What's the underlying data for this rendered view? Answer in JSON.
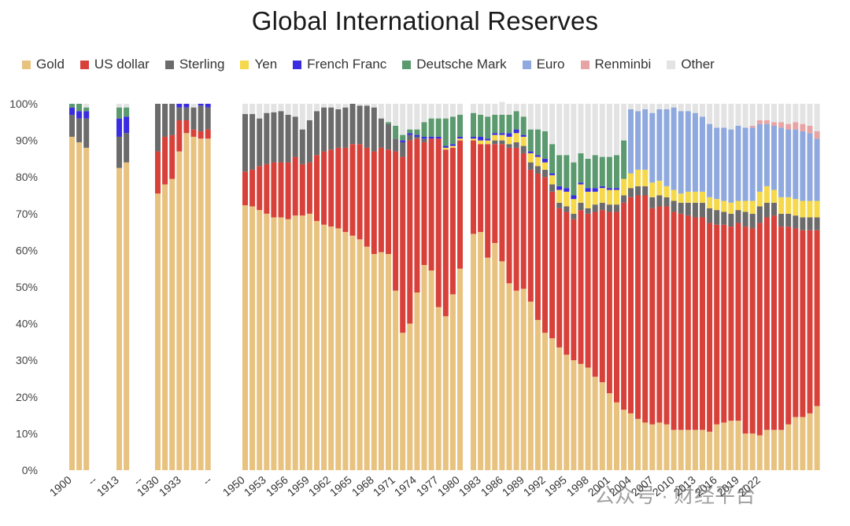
{
  "chart_data": {
    "type": "bar",
    "stacked": true,
    "title": "Global International Reserves",
    "ylim": [
      0,
      100
    ],
    "y_ticks": [
      "0%",
      "10%",
      "20%",
      "30%",
      "40%",
      "50%",
      "60%",
      "70%",
      "80%",
      "90%",
      "100%"
    ],
    "grid": false,
    "legend_position": "top",
    "series": [
      {
        "name": "Gold",
        "color": "#E8C27F"
      },
      {
        "name": "US dollar",
        "color": "#D8403A"
      },
      {
        "name": "Sterling",
        "color": "#6B6B6B"
      },
      {
        "name": "Yen",
        "color": "#F6D94A"
      },
      {
        "name": "French Franc",
        "color": "#3A2CE0"
      },
      {
        "name": "Deutsche Mark",
        "color": "#5A9A6E"
      },
      {
        "name": "Euro",
        "color": "#8FA9DE"
      },
      {
        "name": "Renminbi",
        "color": "#E8A4A4"
      },
      {
        "name": "Other",
        "color": "#E3E3E3"
      }
    ],
    "x_labels": [
      "1900",
      "--",
      "1913",
      "--",
      "1930",
      "1933",
      "--",
      "1950",
      "1953",
      "1956",
      "1959",
      "1962",
      "1965",
      "1968",
      "1971",
      "1974",
      "1977",
      "1980",
      "1983",
      "1986",
      "1989",
      "1992",
      "1995",
      "1998",
      "2001",
      "2004",
      "2007",
      "2010",
      "2013",
      "2016",
      "2019",
      "2022"
    ],
    "groups": [
      {
        "label_index": 0,
        "bars": [
          [
            91,
            0,
            6,
            0,
            2,
            1,
            0,
            0,
            0
          ],
          [
            89.5,
            0,
            6.5,
            0,
            2,
            2,
            0,
            0,
            0
          ],
          [
            88,
            0,
            8,
            0,
            2,
            1,
            0,
            0,
            1
          ]
        ]
      },
      {
        "label_index": 2,
        "bars": [
          [
            82.5,
            0,
            8.5,
            0,
            5,
            3,
            0,
            0,
            1
          ],
          [
            84,
            0,
            8,
            0,
            4.5,
            2.5,
            0,
            0,
            1
          ]
        ]
      },
      {
        "label_index": 4,
        "bars": [
          [
            75.5,
            11.5,
            13,
            0,
            0,
            0,
            0,
            0,
            0
          ],
          [
            78,
            13,
            9,
            0,
            0,
            0,
            0,
            0,
            0
          ],
          [
            79.5,
            12,
            8.5,
            0,
            0,
            0,
            0,
            0,
            0
          ],
          [
            87,
            8.5,
            3.5,
            0,
            1,
            0,
            0,
            0,
            0
          ],
          [
            92,
            3.5,
            3.5,
            0,
            1,
            0,
            0,
            0,
            0
          ],
          [
            91,
            2,
            6,
            0,
            0,
            0,
            0,
            0,
            1
          ],
          [
            90.5,
            2,
            7,
            0,
            0.5,
            0,
            0,
            0,
            0
          ],
          [
            90.5,
            2.5,
            6,
            0,
            1,
            0,
            0,
            0,
            0
          ]
        ]
      },
      {
        "label_index": 7,
        "bars": [
          [
            72.3,
            9.2,
            15.7,
            0,
            0,
            0,
            0,
            0,
            2.8
          ],
          [
            72,
            10,
            15.2,
            0,
            0,
            0,
            0,
            0,
            2.8
          ],
          [
            71,
            12,
            13,
            0,
            0,
            0,
            0,
            0,
            4
          ],
          [
            70,
            13.5,
            14,
            0,
            0,
            0,
            0,
            0,
            2.5
          ],
          [
            69,
            15,
            13.7,
            0,
            0,
            0,
            0,
            0,
            2.3
          ],
          [
            69,
            15,
            14,
            0,
            0,
            0,
            0,
            0,
            2
          ],
          [
            68.5,
            15.5,
            13,
            0,
            0,
            0,
            0,
            0,
            3
          ],
          [
            69.5,
            16,
            11,
            0,
            0,
            0,
            0,
            0,
            3.5
          ],
          [
            69.5,
            14,
            9.5,
            0,
            0,
            0,
            0,
            0,
            7
          ],
          [
            70,
            14,
            11.5,
            0,
            0,
            0,
            0,
            0,
            4.5
          ],
          [
            68,
            18,
            12,
            0,
            0,
            0,
            0,
            0,
            2
          ],
          [
            67,
            20,
            12,
            0,
            0,
            0,
            0,
            0,
            1
          ],
          [
            66.5,
            21,
            11.5,
            0,
            0,
            0,
            0,
            0,
            1
          ],
          [
            66,
            22,
            10.5,
            0,
            0,
            0,
            0,
            0,
            1.5
          ],
          [
            65,
            23,
            11,
            0,
            0,
            0,
            0,
            0,
            1
          ],
          [
            64,
            25,
            11,
            0,
            0,
            0,
            0,
            0,
            0
          ],
          [
            63,
            26,
            10.5,
            0,
            0,
            0,
            0,
            0,
            0.5
          ],
          [
            61,
            27,
            11.5,
            0,
            0,
            0,
            0,
            0,
            0.5
          ],
          [
            59,
            28,
            12,
            0,
            0,
            0,
            0,
            0,
            1
          ],
          [
            59.5,
            28.5,
            8,
            0,
            0,
            0,
            0,
            0,
            4
          ],
          [
            59,
            28.5,
            7,
            0,
            0,
            0.5,
            0,
            0,
            5
          ],
          [
            49,
            38,
            3.5,
            0,
            0,
            3.5,
            0,
            0,
            6
          ],
          [
            37.5,
            48,
            4,
            0,
            0.5,
            1.5,
            0,
            0,
            8.5
          ],
          [
            40,
            50,
            1.5,
            0,
            0.5,
            1,
            0,
            0,
            7
          ],
          [
            48.5,
            42,
            0.5,
            0,
            0.5,
            1.5,
            0,
            0,
            7
          ],
          [
            56,
            33.5,
            1,
            0,
            0.5,
            4,
            0,
            0,
            5
          ],
          [
            54.5,
            36,
            0,
            0,
            0.5,
            5,
            0,
            0,
            4
          ],
          [
            44.5,
            46,
            0,
            0,
            0.5,
            5,
            0,
            0,
            4
          ],
          [
            42,
            45.5,
            0,
            0.5,
            0.5,
            7.5,
            0,
            0,
            4
          ],
          [
            48,
            40,
            0,
            0.5,
            0.5,
            7.5,
            0,
            0,
            3.5
          ],
          [
            55,
            35,
            0,
            0.5,
            0.5,
            6,
            0,
            0,
            3
          ]
        ]
      },
      {
        "label_index": 17,
        "bars": [
          [
            64.5,
            25.5,
            0,
            0.5,
            0.5,
            6.5,
            0,
            0,
            2.5
          ],
          [
            65,
            24,
            0,
            1,
            1,
            6,
            0,
            0,
            3
          ],
          [
            58,
            31,
            0,
            1,
            0.5,
            6,
            0,
            0,
            3.5
          ],
          [
            62,
            27,
            1,
            1.5,
            0.5,
            5,
            0,
            0,
            3
          ],
          [
            57,
            32,
            1,
            1.5,
            0.5,
            5,
            0,
            0,
            3.5
          ],
          [
            51,
            37,
            1,
            2,
            1,
            5,
            0,
            0,
            3
          ],
          [
            49,
            39,
            1.5,
            2.5,
            1,
            5,
            0,
            0,
            2
          ],
          [
            49.5,
            37,
            2,
            2.5,
            0.5,
            5,
            0,
            0,
            3.5
          ],
          [
            46,
            36,
            2,
            2.5,
            0.5,
            6,
            0,
            0,
            7
          ],
          [
            41,
            40,
            2,
            2.5,
            0.5,
            7,
            0,
            0,
            7
          ],
          [
            37.5,
            42.5,
            2,
            2,
            1,
            7.5,
            0,
            0,
            7.5
          ],
          [
            36,
            40,
            2,
            2.5,
            0.5,
            8,
            0,
            0,
            11
          ],
          [
            33.5,
            38,
            1.5,
            3.5,
            1,
            8.5,
            0,
            0,
            14
          ],
          [
            31.5,
            39,
            1.5,
            4,
            1,
            9,
            0,
            0,
            14
          ],
          [
            30,
            38.5,
            1.5,
            4,
            1,
            9,
            0,
            0,
            16
          ],
          [
            29,
            42,
            2,
            5,
            0.5,
            8,
            0,
            0,
            13.5
          ],
          [
            28,
            42,
            1.5,
            4.5,
            1,
            8,
            0,
            0,
            15
          ],
          [
            25.5,
            45,
            2,
            3.5,
            1,
            9,
            0,
            0,
            14
          ],
          [
            24,
            47,
            2,
            4,
            0.5,
            8,
            0,
            0,
            14.5
          ],
          [
            21,
            49.5,
            2,
            4,
            0.5,
            8.5,
            0,
            0,
            14.5
          ],
          [
            18.5,
            52,
            2,
            4,
            0.5,
            9,
            0,
            0,
            14
          ],
          [
            16.5,
            56.5,
            2,
            4.5,
            0,
            10.5,
            0,
            0,
            10
          ]
        ]
      },
      {
        "label_index": 23,
        "bars": [
          [
            15.5,
            59,
            2.5,
            4,
            0,
            0,
            17.5,
            0,
            1.5
          ],
          [
            14,
            61,
            2.5,
            4.5,
            0,
            0,
            16,
            0,
            2
          ],
          [
            13,
            62,
            2.5,
            4.5,
            0,
            0,
            16.5,
            0,
            1.5
          ],
          [
            12.5,
            59,
            3,
            4,
            0,
            0,
            19,
            0,
            2.5
          ],
          [
            13,
            59,
            3,
            4,
            0,
            0,
            19.5,
            0,
            1.5
          ],
          [
            12.5,
            59.5,
            2.5,
            3,
            0,
            0,
            21,
            0,
            1.5
          ],
          [
            11,
            59.5,
            3,
            3,
            0,
            0,
            22.5,
            0,
            1
          ],
          [
            11,
            59,
            3,
            2.5,
            0,
            0,
            22.5,
            0,
            2
          ],
          [
            11,
            58.5,
            3.5,
            3,
            0,
            0,
            22,
            0,
            2
          ],
          [
            11,
            58,
            4,
            3,
            0,
            0,
            21.5,
            0,
            2.5
          ],
          [
            11,
            58,
            4,
            3,
            0,
            0,
            20.5,
            0,
            3.5
          ],
          [
            10.5,
            57,
            4,
            3,
            0,
            0,
            20,
            0,
            5.5
          ],
          [
            12.5,
            54.5,
            4,
            3,
            0,
            0,
            19.5,
            0,
            6.5
          ],
          [
            13,
            54,
            3.5,
            3,
            0,
            0,
            20,
            0,
            6.5
          ],
          [
            13.5,
            53,
            3.5,
            3,
            0,
            0,
            20,
            0,
            7
          ],
          [
            13.5,
            54,
            3.5,
            2.5,
            0,
            0,
            20.5,
            0,
            6
          ],
          [
            10,
            56.5,
            4,
            3,
            0,
            0,
            20,
            0,
            6.5
          ],
          [
            10,
            56,
            4,
            3.5,
            0,
            0,
            20,
            0.5,
            6
          ],
          [
            9.5,
            58,
            4.5,
            4,
            0,
            0,
            18.5,
            1,
            4.5
          ],
          [
            11,
            58,
            4,
            4.5,
            0,
            0,
            17,
            1,
            4.5
          ],
          [
            11,
            58.5,
            3.5,
            3.5,
            0,
            0,
            17.5,
            1,
            5
          ],
          [
            11,
            55.5,
            3.5,
            4.5,
            0,
            0,
            19,
            1.5,
            5
          ],
          [
            12.5,
            54,
            3.5,
            4.5,
            0,
            0,
            18.5,
            1.5,
            5.5
          ],
          [
            14.5,
            51.5,
            3.5,
            4.5,
            0,
            0,
            19,
            2,
            5
          ],
          [
            14.5,
            51,
            3.5,
            4.5,
            0,
            0,
            19,
            2,
            5.5
          ],
          [
            15.5,
            50,
            3.5,
            4.5,
            0,
            0,
            18.5,
            2,
            6
          ],
          [
            17.5,
            48,
            3.5,
            4.5,
            0,
            0,
            17,
            2,
            7.5
          ]
        ]
      }
    ]
  },
  "watermark": "公众号 · 财经平台"
}
